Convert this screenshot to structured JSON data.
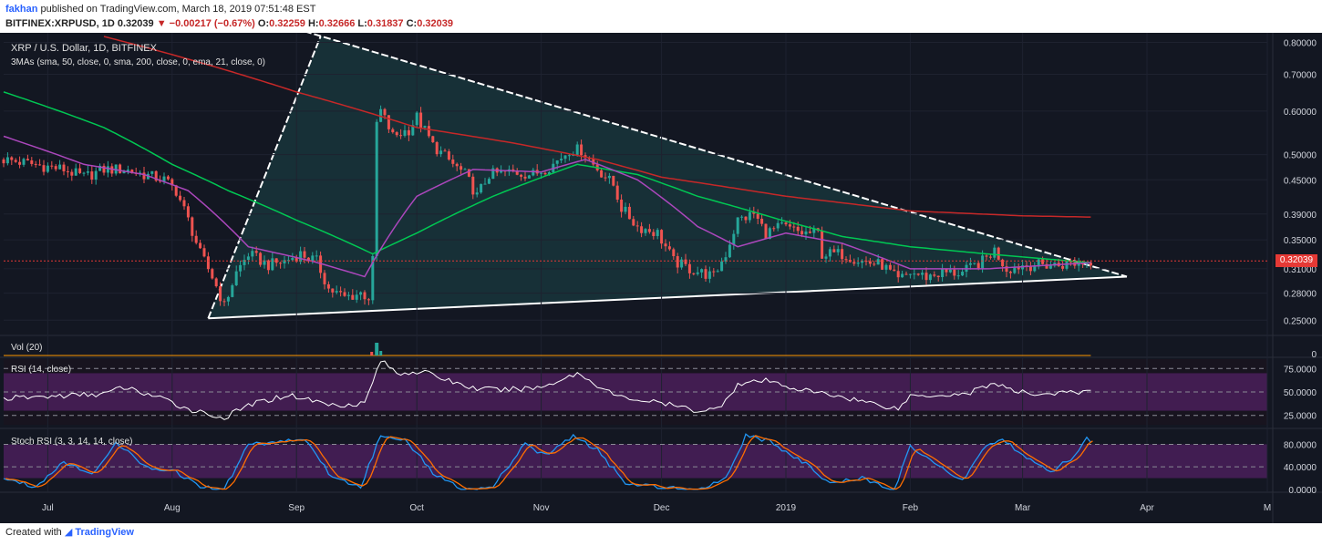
{
  "header": {
    "author": "fakhan",
    "published": "published on TradingView.com, March 18, 2019 07:51:48 EST",
    "symbol": "BITFINEX:XRPUSD, 1D",
    "last": "0.32039",
    "change_arrow": "▼",
    "change": "−0.00217 (−0.67%)",
    "o_label": "O:",
    "o": "0.32259",
    "h_label": "H:",
    "h": "0.32666",
    "l_label": "L:",
    "l": "0.31837",
    "c_label": "C:",
    "c": "0.32039"
  },
  "panes": {
    "main_title": "XRP / U.S. Dollar, 1D, BITFINEX",
    "ma_legend": "3MAs (sma, 50, close, 0, sma, 200, close, 0, ema, 21, close, 0)",
    "vol_label": "Vol (20)",
    "rsi_label": "RSI (14, close)",
    "stoch_label": "Stoch RSI (3, 3, 14, 14, close)",
    "price_tag": "0.32039"
  },
  "footer": {
    "created_with": "Created with",
    "brand": "TradingView"
  },
  "colors": {
    "background": "#131722",
    "up": "#26a69a",
    "down": "#ef5350",
    "ma50": "#00c853",
    "ma200": "#c62828",
    "ema21": "#ab47bc",
    "rsi_line": "#ffffff",
    "rsi_band": "#4a1e5a",
    "stoch_k": "#2196f3",
    "stoch_d": "#ff6d00",
    "triangle": "#ffffff",
    "triangle_fill": "#1a3a3f"
  },
  "chart_data": [
    {
      "type": "line",
      "name": "price",
      "y_scale": "log",
      "ylim": [
        0.24,
        0.82
      ],
      "y_ticks": [
        "0.80000",
        "0.70000",
        "0.60000",
        "0.50000",
        "0.45000",
        "0.39000",
        "0.35000",
        "0.31000",
        "0.28000",
        "0.25000"
      ],
      "y_tick_values": [
        0.8,
        0.7,
        0.6,
        0.5,
        0.45,
        0.39,
        0.35,
        0.31,
        0.28,
        0.25
      ],
      "x_ticks": [
        "Jul",
        "Aug",
        "Sep",
        "Oct",
        "Nov",
        "Dec",
        "2019",
        "Feb",
        "Mar",
        "Apr",
        "M"
      ],
      "x_tick_dates": [
        "2018-07-01",
        "2018-08-01",
        "2018-09-01",
        "2018-10-01",
        "2018-11-01",
        "2018-12-01",
        "2019-01-01",
        "2019-02-01",
        "2019-03-01",
        "2019-04-01",
        "2019-05-01"
      ],
      "x_range": [
        "2018-06-20",
        "2019-05-01"
      ],
      "last_date": "2019-03-18",
      "close_keypoints": [
        [
          "2018-06-20",
          0.49
        ],
        [
          "2018-07-05",
          0.47
        ],
        [
          "2018-07-10",
          0.455
        ],
        [
          "2018-07-15",
          0.47
        ],
        [
          "2018-07-20",
          0.47
        ],
        [
          "2018-07-25",
          0.46
        ],
        [
          "2018-07-30",
          0.45
        ],
        [
          "2018-08-02",
          0.43
        ],
        [
          "2018-08-05",
          0.38
        ],
        [
          "2018-08-08",
          0.33
        ],
        [
          "2018-08-11",
          0.3
        ],
        [
          "2018-08-14",
          0.265
        ],
        [
          "2018-08-17",
          0.305
        ],
        [
          "2018-08-20",
          0.33
        ],
        [
          "2018-08-25",
          0.315
        ],
        [
          "2018-08-29",
          0.32
        ],
        [
          "2018-09-02",
          0.33
        ],
        [
          "2018-09-06",
          0.32
        ],
        [
          "2018-09-09",
          0.285
        ],
        [
          "2018-09-13",
          0.275
        ],
        [
          "2018-09-17",
          0.28
        ],
        [
          "2018-09-19",
          0.275
        ],
        [
          "2018-09-20",
          0.32
        ],
        [
          "2018-09-21",
          0.57
        ],
        [
          "2018-09-22",
          0.6
        ],
        [
          "2018-09-25",
          0.54
        ],
        [
          "2018-09-29",
          0.555
        ],
        [
          "2018-10-01",
          0.585
        ],
        [
          "2018-10-05",
          0.52
        ],
        [
          "2018-10-10",
          0.48
        ],
        [
          "2018-10-13",
          0.46
        ],
        [
          "2018-10-16",
          0.42
        ],
        [
          "2018-10-19",
          0.46
        ],
        [
          "2018-10-25",
          0.465
        ],
        [
          "2018-10-30",
          0.46
        ],
        [
          "2018-11-04",
          0.48
        ],
        [
          "2018-11-08",
          0.51
        ],
        [
          "2018-11-11",
          0.51
        ],
        [
          "2018-11-14",
          0.48
        ],
        [
          "2018-11-19",
          0.44
        ],
        [
          "2018-11-21",
          0.4
        ],
        [
          "2018-11-25",
          0.37
        ],
        [
          "2018-11-30",
          0.36
        ],
        [
          "2018-12-04",
          0.32
        ],
        [
          "2018-12-08",
          0.31
        ],
        [
          "2018-12-14",
          0.3
        ],
        [
          "2018-12-17",
          0.33
        ],
        [
          "2018-12-20",
          0.38
        ],
        [
          "2018-12-24",
          0.39
        ],
        [
          "2018-12-27",
          0.36
        ],
        [
          "2018-12-31",
          0.37
        ],
        [
          "2019-01-05",
          0.36
        ],
        [
          "2019-01-09",
          0.36
        ],
        [
          "2019-01-10",
          0.33
        ],
        [
          "2019-01-15",
          0.33
        ],
        [
          "2019-01-20",
          0.32
        ],
        [
          "2019-01-25",
          0.315
        ],
        [
          "2019-01-29",
          0.295
        ],
        [
          "2019-02-01",
          0.305
        ],
        [
          "2019-02-05",
          0.3
        ],
        [
          "2019-02-09",
          0.305
        ],
        [
          "2019-02-14",
          0.305
        ],
        [
          "2019-02-19",
          0.32
        ],
        [
          "2019-02-22",
          0.335
        ],
        [
          "2019-02-25",
          0.31
        ],
        [
          "2019-03-01",
          0.315
        ],
        [
          "2019-03-05",
          0.315
        ],
        [
          "2019-03-10",
          0.315
        ],
        [
          "2019-03-18",
          0.32
        ]
      ],
      "sma200_keypoints": [
        [
          "2018-07-15",
          0.82
        ],
        [
          "2018-08-01",
          0.76
        ],
        [
          "2018-09-01",
          0.65
        ],
        [
          "2018-10-01",
          0.56
        ],
        [
          "2018-10-25",
          0.525
        ],
        [
          "2018-11-15",
          0.49
        ],
        [
          "2018-12-01",
          0.455
        ],
        [
          "2019-01-01",
          0.42
        ],
        [
          "2019-02-01",
          0.395
        ],
        [
          "2019-03-01",
          0.387
        ],
        [
          "2019-03-18",
          0.385
        ]
      ],
      "sma50_keypoints": [
        [
          "2018-06-20",
          0.65
        ],
        [
          "2018-07-15",
          0.56
        ],
        [
          "2018-08-01",
          0.48
        ],
        [
          "2018-08-15",
          0.43
        ],
        [
          "2018-09-01",
          0.38
        ],
        [
          "2018-09-20",
          0.33
        ],
        [
          "2018-10-01",
          0.36
        ],
        [
          "2018-10-20",
          0.42
        ],
        [
          "2018-11-10",
          0.48
        ],
        [
          "2018-11-25",
          0.46
        ],
        [
          "2018-12-10",
          0.42
        ],
        [
          "2018-12-31",
          0.38
        ],
        [
          "2019-01-15",
          0.355
        ],
        [
          "2019-02-01",
          0.34
        ],
        [
          "2019-02-20",
          0.33
        ],
        [
          "2019-03-18",
          0.318
        ]
      ],
      "ema21_keypoints": [
        [
          "2018-06-20",
          0.54
        ],
        [
          "2018-07-10",
          0.48
        ],
        [
          "2018-07-25",
          0.46
        ],
        [
          "2018-08-05",
          0.43
        ],
        [
          "2018-08-20",
          0.34
        ],
        [
          "2018-09-05",
          0.32
        ],
        [
          "2018-09-18",
          0.3
        ],
        [
          "2018-10-01",
          0.42
        ],
        [
          "2018-10-15",
          0.47
        ],
        [
          "2018-11-01",
          0.465
        ],
        [
          "2018-11-12",
          0.49
        ],
        [
          "2018-11-25",
          0.45
        ],
        [
          "2018-12-10",
          0.37
        ],
        [
          "2018-12-20",
          0.34
        ],
        [
          "2019-01-01",
          0.36
        ],
        [
          "2019-01-15",
          0.345
        ],
        [
          "2019-02-01",
          0.31
        ],
        [
          "2019-02-20",
          0.31
        ],
        [
          "2019-03-18",
          0.318
        ]
      ],
      "triangle": {
        "upper": [
          [
            "2018-08-22",
            0.89
          ],
          [
            "2019-03-27",
            0.3
          ]
        ],
        "lower": [
          [
            "2018-08-10",
            0.252
          ],
          [
            "2019-03-27",
            0.3
          ]
        ],
        "left_edge": [
          [
            "2018-08-10",
            0.252
          ],
          [
            "2018-09-07",
            0.82
          ]
        ]
      },
      "last_price_line": 0.32039
    },
    {
      "type": "bar",
      "name": "Vol (20)",
      "y_ticks": [
        "0"
      ],
      "spike_date": "2018-09-21"
    },
    {
      "type": "line",
      "name": "RSI (14, close)",
      "ylim": [
        15,
        85
      ],
      "y_ticks": [
        "75.0000",
        "50.0000",
        "25.0000"
      ],
      "y_tick_values": [
        75,
        50,
        25
      ],
      "band": [
        30,
        70
      ],
      "keypoints": [
        [
          "2018-06-20",
          43
        ],
        [
          "2018-07-05",
          46
        ],
        [
          "2018-07-15",
          48
        ],
        [
          "2018-07-20",
          55
        ],
        [
          "2018-07-28",
          45
        ],
        [
          "2018-08-05",
          32
        ],
        [
          "2018-08-14",
          22
        ],
        [
          "2018-08-20",
          36
        ],
        [
          "2018-08-30",
          47
        ],
        [
          "2018-09-10",
          36
        ],
        [
          "2018-09-18",
          38
        ],
        [
          "2018-09-22",
          84
        ],
        [
          "2018-09-26",
          70
        ],
        [
          "2018-10-02",
          72
        ],
        [
          "2018-10-15",
          54
        ],
        [
          "2018-10-22",
          52
        ],
        [
          "2018-11-01",
          55
        ],
        [
          "2018-11-10",
          70
        ],
        [
          "2018-11-20",
          45
        ],
        [
          "2018-12-01",
          38
        ],
        [
          "2018-12-10",
          30
        ],
        [
          "2018-12-15",
          32
        ],
        [
          "2018-12-20",
          58
        ],
        [
          "2018-12-27",
          62
        ],
        [
          "2019-01-05",
          52
        ],
        [
          "2019-01-15",
          45
        ],
        [
          "2019-01-29",
          32
        ],
        [
          "2019-02-01",
          46
        ],
        [
          "2019-02-15",
          48
        ],
        [
          "2019-02-22",
          60
        ],
        [
          "2019-02-27",
          50
        ],
        [
          "2019-03-05",
          48
        ],
        [
          "2019-03-18",
          50
        ]
      ]
    },
    {
      "type": "line",
      "name": "Stoch RSI (3, 3, 14, 14, close)",
      "ylim": [
        -5,
        105
      ],
      "y_ticks": [
        "80.0000",
        "40.0000",
        "0.0000"
      ],
      "y_tick_values": [
        80,
        40,
        0
      ],
      "band": [
        20,
        80
      ],
      "k_keypoints": [
        [
          "2018-06-20",
          20
        ],
        [
          "2018-06-28",
          5
        ],
        [
          "2018-07-05",
          50
        ],
        [
          "2018-07-12",
          25
        ],
        [
          "2018-07-18",
          85
        ],
        [
          "2018-07-25",
          40
        ],
        [
          "2018-08-01",
          35
        ],
        [
          "2018-08-08",
          5
        ],
        [
          "2018-08-14",
          0
        ],
        [
          "2018-08-20",
          80
        ],
        [
          "2018-08-28",
          85
        ],
        [
          "2018-09-03",
          90
        ],
        [
          "2018-09-10",
          20
        ],
        [
          "2018-09-17",
          5
        ],
        [
          "2018-09-22",
          95
        ],
        [
          "2018-09-28",
          90
        ],
        [
          "2018-10-05",
          30
        ],
        [
          "2018-10-12",
          0
        ],
        [
          "2018-10-20",
          5
        ],
        [
          "2018-10-28",
          80
        ],
        [
          "2018-11-02",
          60
        ],
        [
          "2018-11-09",
          95
        ],
        [
          "2018-11-15",
          70
        ],
        [
          "2018-11-22",
          10
        ],
        [
          "2018-12-01",
          5
        ],
        [
          "2018-12-10",
          0
        ],
        [
          "2018-12-17",
          20
        ],
        [
          "2018-12-22",
          95
        ],
        [
          "2018-12-28",
          85
        ],
        [
          "2019-01-05",
          50
        ],
        [
          "2019-01-12",
          10
        ],
        [
          "2019-01-20",
          20
        ],
        [
          "2019-01-28",
          0
        ],
        [
          "2019-02-01",
          75
        ],
        [
          "2019-02-08",
          40
        ],
        [
          "2019-02-14",
          15
        ],
        [
          "2019-02-20",
          80
        ],
        [
          "2019-02-24",
          90
        ],
        [
          "2019-03-01",
          60
        ],
        [
          "2019-03-08",
          30
        ],
        [
          "2019-03-14",
          60
        ],
        [
          "2019-03-17",
          90
        ],
        [
          "2019-03-18",
          85
        ]
      ]
    }
  ]
}
